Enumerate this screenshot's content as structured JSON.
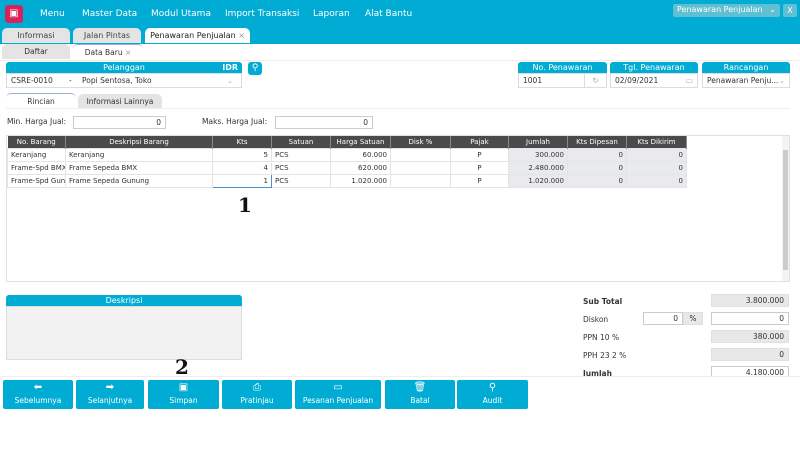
{
  "menu": {
    "items": [
      "Menu",
      "Master Data",
      "Modul Utama",
      "Import Transaksi",
      "Laporan",
      "Alat Bantu"
    ],
    "window_select": "Penawaran Penjualan",
    "close": "X"
  },
  "tabs": [
    {
      "label": "Informasi"
    },
    {
      "label": "Jalan Pintas"
    },
    {
      "label": "Penawaran Penjualan",
      "close": "×"
    }
  ],
  "subtabs": [
    {
      "label": "Daftar"
    },
    {
      "label": "Data Baru",
      "close": "×"
    }
  ],
  "customer": {
    "header": "Pelanggan",
    "currency": "IDR",
    "code": "CSRE-0010",
    "separator": "-",
    "name": "Popi Sentosa, Toko"
  },
  "quote": {
    "no_label": "No. Penawaran",
    "no": "1001",
    "date_label": "Tgl. Penawaran",
    "date": "02/09/2021",
    "design_label": "Rancangan",
    "design": "Penawaran Penju..."
  },
  "detail_tabs": [
    "Rincian",
    "Informasi Lainnya"
  ],
  "filters": {
    "min_label": "Min. Harga Jual:",
    "min": "0",
    "max_label": "Maks. Harga Jual:",
    "max": "0"
  },
  "table": {
    "columns": [
      "No. Barang",
      "Deskripsi Barang",
      "Kts",
      "Satuan",
      "Harga Satuan",
      "Disk %",
      "Pajak",
      "Jumlah",
      "Kts Dipesan",
      "Kts Dikirim"
    ],
    "rows": [
      [
        "Keranjang",
        "Keranjang",
        "5",
        "PCS",
        "60.000",
        "",
        "P",
        "300.000",
        "0",
        "0"
      ],
      [
        "Frame-Spd BMX",
        "Frame Sepeda BMX",
        "4",
        "PCS",
        "620.000",
        "",
        "P",
        "2.480.000",
        "0",
        "0"
      ],
      [
        "Frame-Spd Gunung",
        "Frame Sepeda Gunung",
        "1",
        "PCS",
        "1.020.000",
        "",
        "P",
        "1.020.000",
        "0",
        "0"
      ]
    ]
  },
  "description": {
    "header": "Deskripsi",
    "value": ""
  },
  "totals": {
    "subtotal_label": "Sub Total",
    "subtotal": "3.800.000",
    "discount_label": "Diskon",
    "discount_pct": "0",
    "pct": "%",
    "discount": "0",
    "ppn_label": "PPN 10 %",
    "ppn": "380.000",
    "pph_label": "PPH 23 2 %",
    "pph": "0",
    "total_label": "Jumlah",
    "total": "4.180.000"
  },
  "buttons": [
    {
      "label": "Sebelumnya",
      "icon": "arrow-left"
    },
    {
      "label": "Selanjutnya",
      "icon": "arrow-right"
    },
    {
      "label": "Simpan",
      "icon": "save"
    },
    {
      "label": "Pratinjau",
      "icon": "printer"
    },
    {
      "label": "Pesanan Penjualan",
      "icon": "card"
    },
    {
      "label": "Batal",
      "icon": "trash"
    },
    {
      "label": "Audit",
      "icon": "magnifier"
    }
  ],
  "markers": [
    "1",
    "2"
  ],
  "colors": {
    "accent": "#00acd4",
    "logo": "#d6245a",
    "table_header": "#4a4a4a"
  }
}
